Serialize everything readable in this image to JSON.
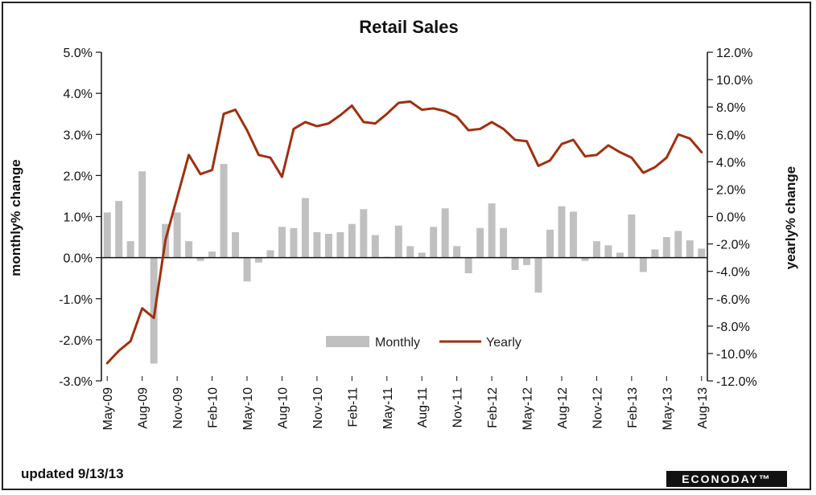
{
  "footer": {
    "updated": "updated 9/13/13",
    "brand": "ECONODAY™"
  },
  "colors": {
    "monthly": "#c0c0c0",
    "yearly": "#a0300e",
    "axis": "#111111"
  },
  "chart_data": {
    "type": "bar",
    "title": "Retail Sales",
    "xlabel": "",
    "ylabel": "monthly% change",
    "y2label": "yearly% change",
    "ylim": [
      -3.0,
      5.0
    ],
    "y2lim": [
      -12.0,
      12.0
    ],
    "yticks": [
      "5.0%",
      "4.0%",
      "3.0%",
      "2.0%",
      "1.0%",
      "0.0%",
      "-1.0%",
      "-2.0%",
      "-3.0%"
    ],
    "y2ticks": [
      "12.0%",
      "10.0%",
      "8.0%",
      "6.0%",
      "4.0%",
      "2.0%",
      "0.0%",
      "-2.0%",
      "-4.0%",
      "-6.0%",
      "-8.0%",
      "-10.0%",
      "-12.0%"
    ],
    "categories": [
      "May-09",
      "Jun-09",
      "Jul-09",
      "Aug-09",
      "Sep-09",
      "Oct-09",
      "Nov-09",
      "Dec-09",
      "Jan-10",
      "Feb-10",
      "Mar-10",
      "Apr-10",
      "May-10",
      "Jun-10",
      "Jul-10",
      "Aug-10",
      "Sep-10",
      "Oct-10",
      "Nov-10",
      "Dec-10",
      "Jan-11",
      "Feb-11",
      "Mar-11",
      "Apr-11",
      "May-11",
      "Jun-11",
      "Jul-11",
      "Aug-11",
      "Sep-11",
      "Oct-11",
      "Nov-11",
      "Dec-11",
      "Jan-12",
      "Feb-12",
      "Mar-12",
      "Apr-12",
      "May-12",
      "Jun-12",
      "Jul-12",
      "Aug-12",
      "Sep-12",
      "Oct-12",
      "Nov-12",
      "Dec-12",
      "Jan-13",
      "Feb-13",
      "Mar-13",
      "Apr-13",
      "May-13",
      "Jun-13",
      "Jul-13",
      "Aug-13"
    ],
    "tick_labels": [
      "May-09",
      "Aug-09",
      "Nov-09",
      "Feb-10",
      "May-10",
      "Aug-10",
      "Nov-10",
      "Feb-11",
      "May-11",
      "Aug-11",
      "Nov-11",
      "Feb-12",
      "May-12",
      "Aug-12",
      "Nov-12",
      "Feb-13",
      "May-13",
      "Aug-13"
    ],
    "series": [
      {
        "name": "Monthly",
        "type": "bar",
        "axis": "left",
        "values": [
          1.1,
          1.38,
          0.4,
          2.1,
          -2.58,
          0.82,
          1.1,
          0.4,
          -0.08,
          0.15,
          2.28,
          0.62,
          -0.58,
          -0.12,
          0.18,
          0.75,
          0.72,
          1.45,
          0.62,
          0.58,
          0.62,
          0.82,
          1.18,
          0.55,
          0.02,
          0.78,
          0.28,
          0.12,
          0.75,
          1.2,
          0.28,
          -0.38,
          0.72,
          1.32,
          0.72,
          -0.3,
          -0.18,
          -0.85,
          0.68,
          1.25,
          1.12,
          -0.08,
          0.4,
          0.3,
          0.12,
          1.05,
          -0.35,
          0.2,
          0.5,
          0.65,
          0.42,
          0.22
        ]
      },
      {
        "name": "Yearly",
        "type": "line",
        "axis": "right",
        "values": [
          -10.7,
          -9.8,
          -9.1,
          -6.7,
          -7.4,
          -1.7,
          1.4,
          4.5,
          3.1,
          3.4,
          7.5,
          7.8,
          6.3,
          4.5,
          4.3,
          2.9,
          6.4,
          6.9,
          6.6,
          6.8,
          7.4,
          8.1,
          6.9,
          6.8,
          7.5,
          8.3,
          8.4,
          7.8,
          7.9,
          7.7,
          7.3,
          6.3,
          6.4,
          6.9,
          6.4,
          5.6,
          5.5,
          3.7,
          4.1,
          5.3,
          5.6,
          4.4,
          4.5,
          5.2,
          4.7,
          4.3,
          3.2,
          3.6,
          4.3,
          6.0,
          5.7,
          4.7
        ]
      }
    ],
    "legend_position": "bottom-center",
    "grid": false
  }
}
